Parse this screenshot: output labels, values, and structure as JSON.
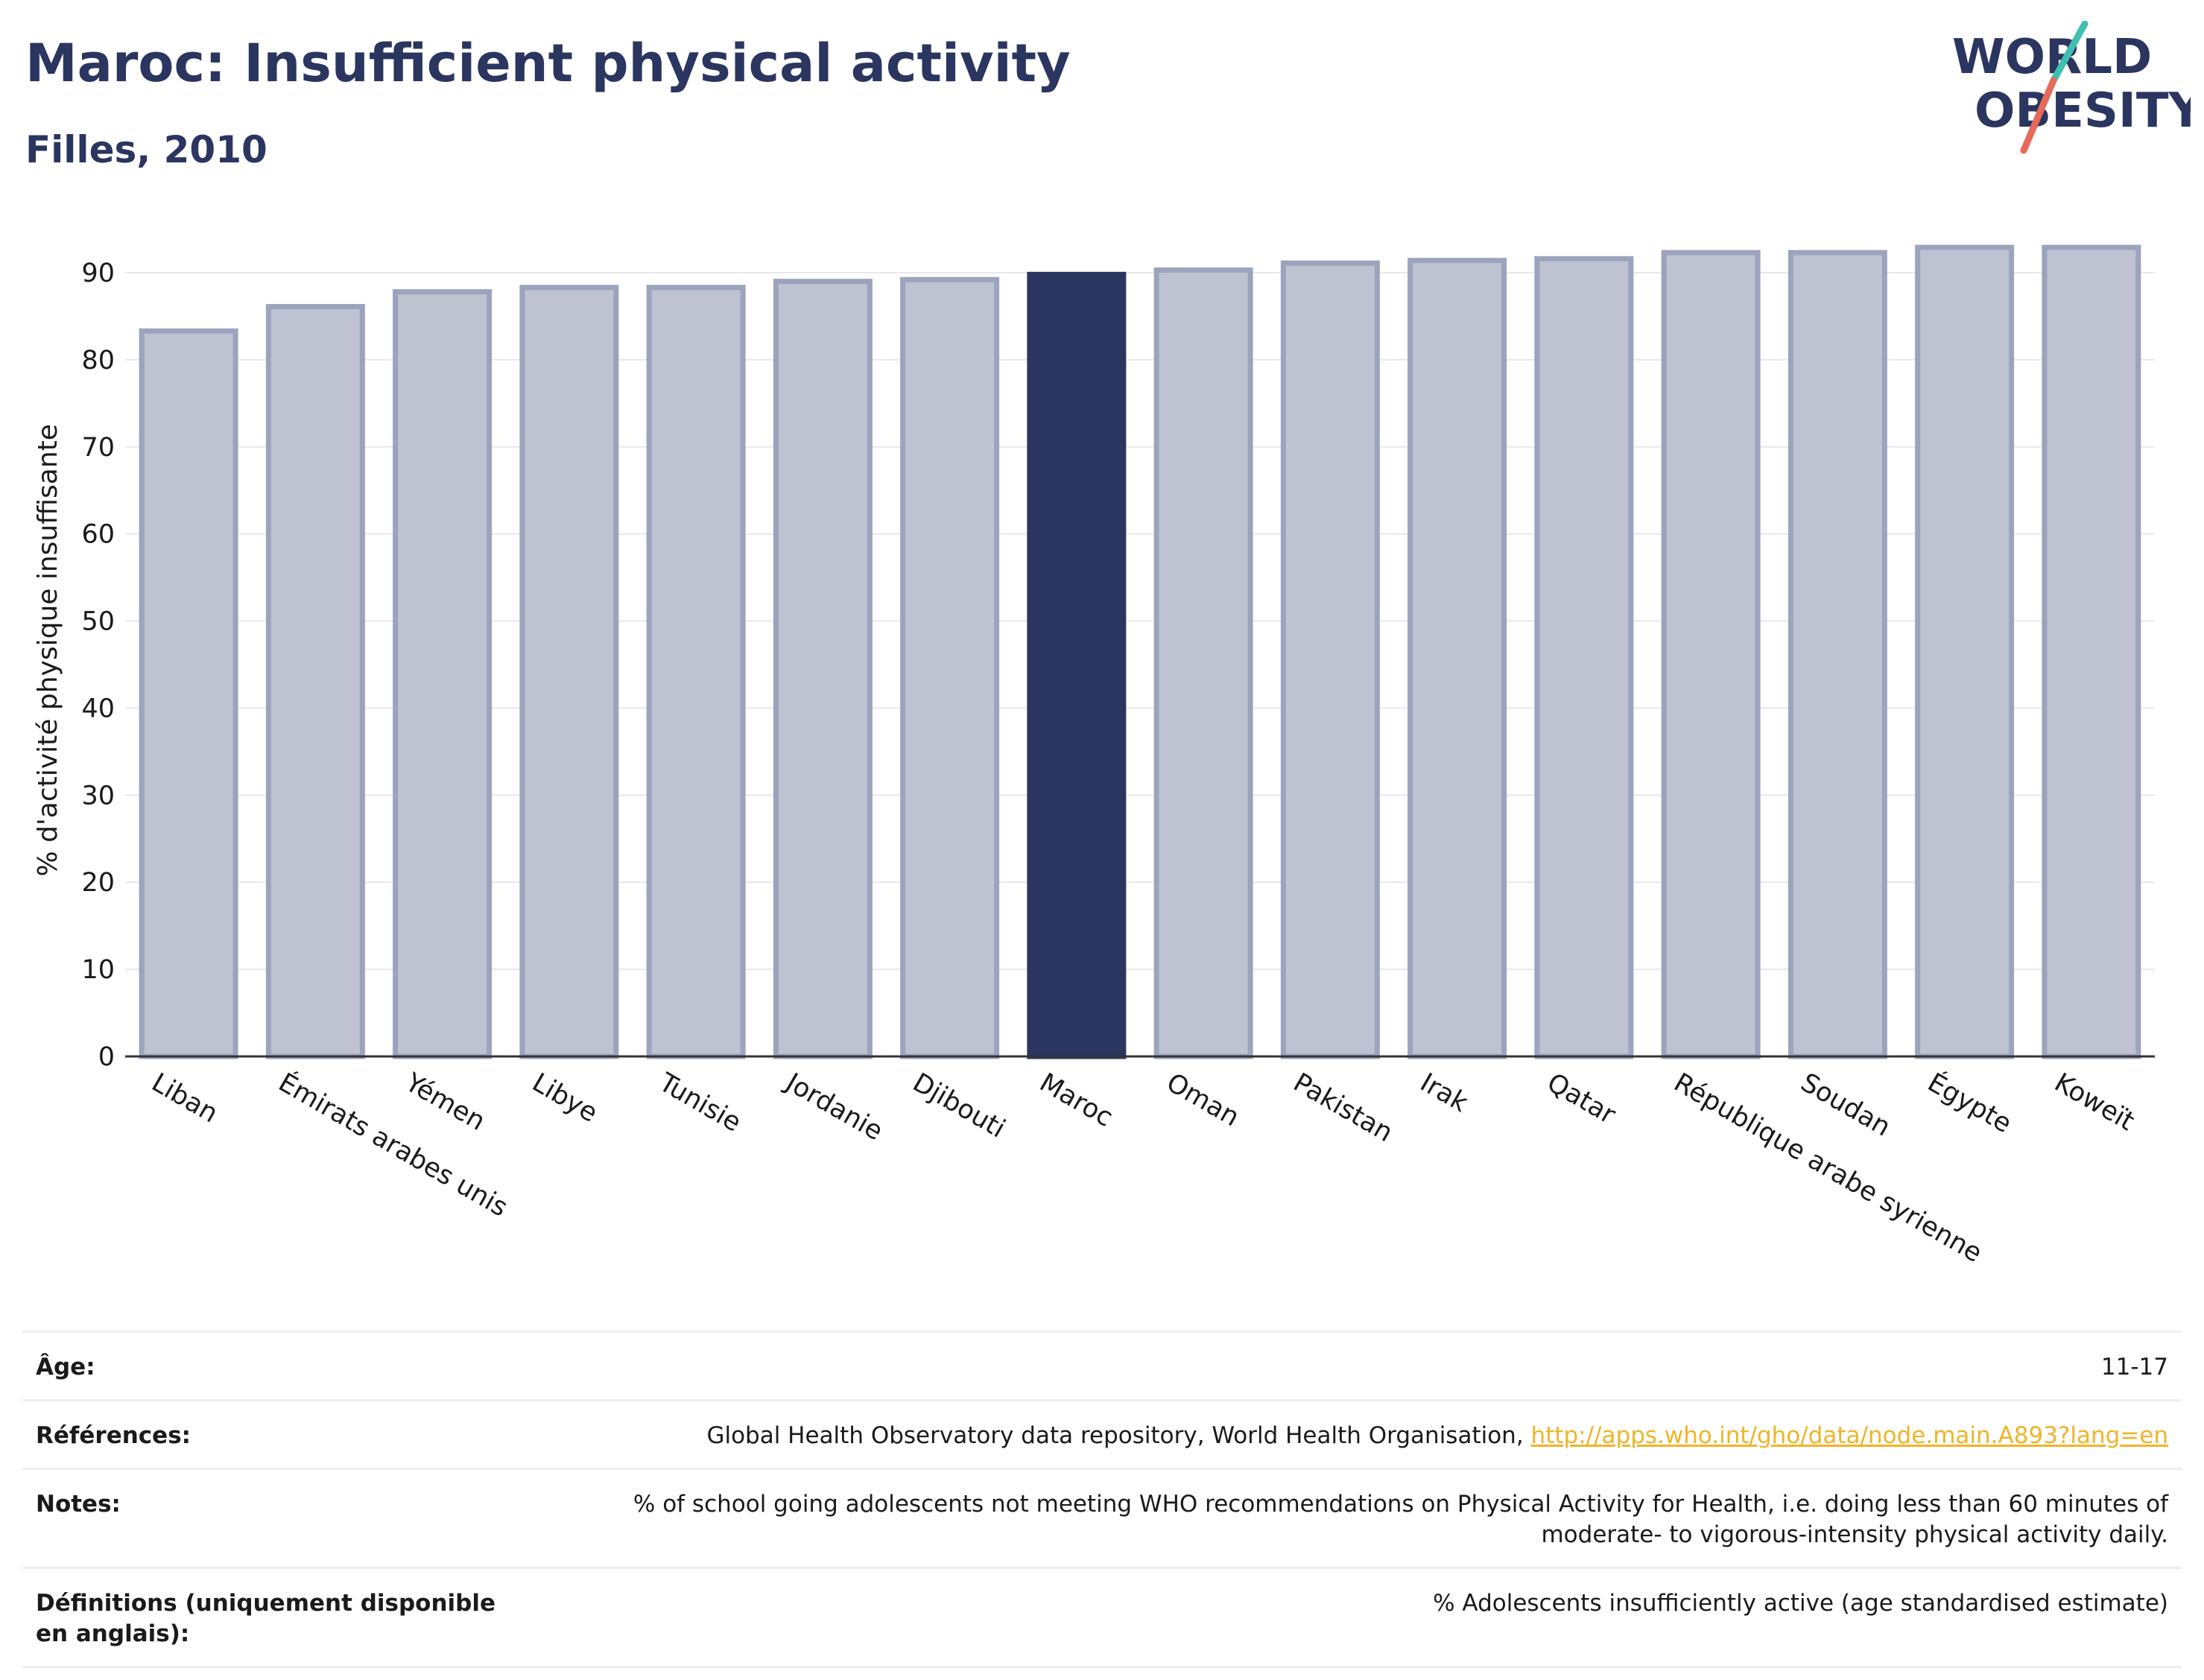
{
  "header": {
    "title": "Maroc: Insufficient physical activity",
    "subtitle": "Filles, 2010"
  },
  "logo": {
    "line1": "WORLD",
    "line2": "OBESITY"
  },
  "colors": {
    "highlight": "#2a3560",
    "bar_fill": "#bfc3d1",
    "bar_stroke": "#9ba3bd",
    "grid": "#e6e8ef",
    "logo_teal": "#3fbfad",
    "logo_coral": "#e8685a"
  },
  "chart_data": {
    "type": "bar",
    "title": "Maroc: Insufficient physical activity",
    "subtitle": "Filles, 2010",
    "xlabel": "",
    "ylabel": "% d'activité physique insuffisante",
    "ylim": [
      0,
      95
    ],
    "yticks": [
      0,
      10,
      20,
      30,
      40,
      50,
      60,
      70,
      80,
      90
    ],
    "grid": true,
    "highlight": "Maroc",
    "categories": [
      "Liban",
      "Émirats arabes unis",
      "Yémen",
      "Libye",
      "Tunisie",
      "Jordanie",
      "Djibouti",
      "Maroc",
      "Oman",
      "Pakistan",
      "Irak",
      "Qatar",
      "République arabe syrienne",
      "Soudan",
      "Égypte",
      "Koweït"
    ],
    "values": [
      83.3,
      86.1,
      87.8,
      88.3,
      88.3,
      89.0,
      89.2,
      89.8,
      90.3,
      91.1,
      91.4,
      91.6,
      92.3,
      92.3,
      92.9,
      92.9
    ]
  },
  "meta": [
    {
      "label": "Âge:",
      "value": "11-17"
    },
    {
      "label": "Références:",
      "value": "Global Health Observatory data repository, World Health Organisation, ",
      "link": "http://apps.who.int/gho/data/node.main.A893?lang=en"
    },
    {
      "label": "Notes:",
      "value": "% of school going adolescents not meeting WHO recommendations on Physical Activity for Health, i.e. doing less than 60 minutes of moderate- to vigorous-intensity physical activity daily."
    },
    {
      "label": "Définitions (uniquement disponible en anglais):",
      "value": "% Adolescents insufficiently active (age standardised estimate)"
    }
  ]
}
